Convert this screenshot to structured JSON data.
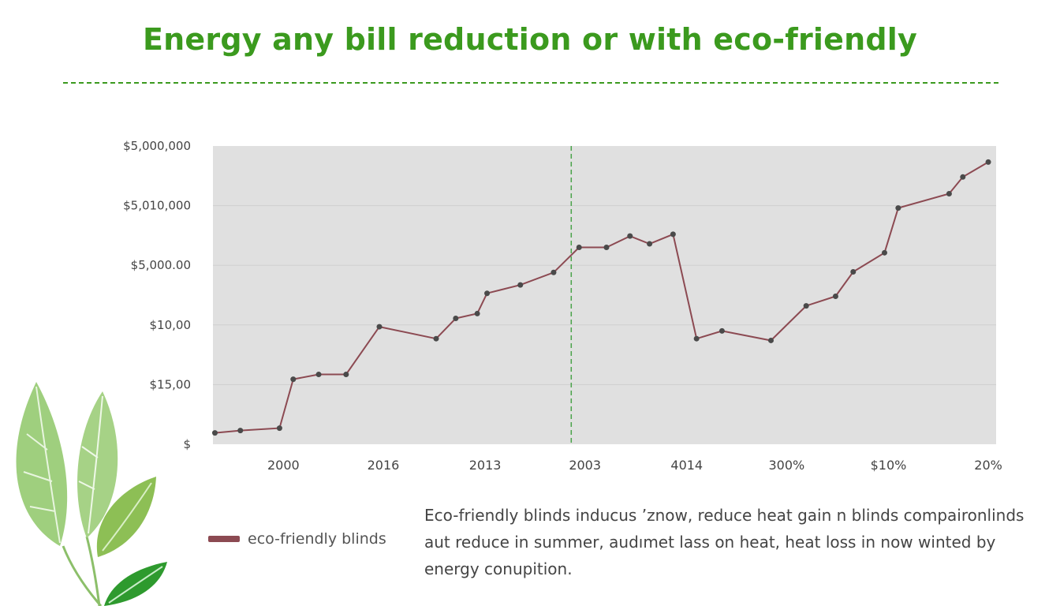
{
  "page": {
    "title": "Energy any bill reduction  or with eco-friendly"
  },
  "legend": {
    "label": "eco-friendly blinds",
    "color": "#8c4a52"
  },
  "note": "Eco-friendly blinds inducus ’znow, reduce  heat gain n blinds compaironlinds aut reduce in summer, audımet lass on heat, heat loss in now winted by energy conupition.",
  "colors": {
    "title": "#3b9a1e",
    "plot_background": "#e0e0e0",
    "line": "#8c4a52",
    "marker": "#4a4a4a",
    "marker_line": "#4aa34a"
  },
  "chart_data": {
    "type": "line",
    "title": "",
    "xlabel": "",
    "ylabel": "",
    "grid": true,
    "ylim": [
      0,
      5
    ],
    "yticks": [
      {
        "value": 0,
        "label": "$"
      },
      {
        "value": 1,
        "label": "$15,00"
      },
      {
        "value": 2,
        "label": "$10,00"
      },
      {
        "value": 3,
        "label": "$5,000.00"
      },
      {
        "value": 4,
        "label": "$5,010,000"
      },
      {
        "value": 5,
        "label": "$5,000,000"
      }
    ],
    "xlim": [
      0,
      40
    ],
    "xticks": [
      {
        "value": 3.6,
        "label": "2000"
      },
      {
        "value": 8.7,
        "label": "2016"
      },
      {
        "value": 13.9,
        "label": "2013"
      },
      {
        "value": 19.0,
        "label": "2003"
      },
      {
        "value": 24.2,
        "label": "4014"
      },
      {
        "value": 29.3,
        "label": "300%"
      },
      {
        "value": 34.5,
        "label": "$10%"
      },
      {
        "value": 39.6,
        "label": "20%"
      }
    ],
    "vertical_marker": {
      "x": 18.3
    },
    "series": [
      {
        "name": "eco-friendly blinds",
        "x": [
          0.1,
          1.4,
          3.4,
          4.1,
          5.4,
          6.8,
          8.5,
          11.4,
          12.4,
          13.5,
          14.0,
          15.7,
          17.4,
          18.7,
          20.1,
          21.3,
          22.3,
          23.5,
          24.7,
          26.0,
          28.5,
          30.3,
          31.8,
          32.7,
          34.3,
          35.0,
          37.6,
          38.3,
          39.6
        ],
        "y": [
          0.19,
          0.23,
          0.27,
          1.09,
          1.17,
          1.17,
          1.97,
          1.77,
          2.11,
          2.19,
          2.53,
          2.67,
          2.88,
          3.3,
          3.3,
          3.49,
          3.36,
          3.52,
          1.77,
          1.9,
          1.74,
          2.32,
          2.48,
          2.89,
          3.21,
          3.96,
          4.2,
          4.48,
          4.73
        ]
      }
    ]
  }
}
